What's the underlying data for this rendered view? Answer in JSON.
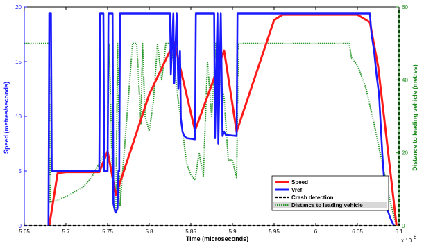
{
  "chart_data": {
    "type": "line",
    "xlabel": "Time (microseconds)",
    "ylabel_left": "Speed (metres/seconds)",
    "ylabel_right": "Distance to leading vehicle (metres)",
    "x_exponent_label": "x 10",
    "x_exponent_power": "8",
    "xlim": [
      5.65,
      6.1
    ],
    "ylim_left": [
      0,
      20
    ],
    "ylim_right": [
      0,
      60
    ],
    "x_ticks": [
      5.65,
      5.7,
      5.75,
      5.8,
      5.85,
      5.9,
      5.95,
      6.0,
      6.05,
      6.1
    ],
    "x_tick_labels": [
      "5.65",
      "5.7",
      "5.75",
      "5.8",
      "5.85",
      "5.9",
      "5.95",
      "6",
      "6.05",
      "6.1"
    ],
    "y_left_ticks": [
      0,
      5,
      10,
      15,
      20
    ],
    "y_left_tick_labels": [
      "0",
      "5",
      "10",
      "15",
      "20"
    ],
    "y_right_ticks": [
      0,
      20,
      40,
      60
    ],
    "y_right_tick_labels": [
      "0",
      "20",
      "40",
      "60"
    ],
    "left_axis_color": "#1a1aff",
    "right_axis_color": "#1a8a1a",
    "legend_placement": "bottom-right",
    "grid": false,
    "series": [
      {
        "name": "Speed",
        "axis": "left",
        "color": "#ff1a1a",
        "style": "solid",
        "x": [
          5.68,
          5.69,
          5.7,
          5.71,
          5.72,
          5.73,
          5.74,
          5.75,
          5.76,
          5.8,
          5.83,
          5.855,
          5.89,
          5.905,
          5.95,
          5.96,
          6.0,
          6.05,
          6.065,
          6.075,
          6.085,
          6.097
        ],
        "y": [
          0,
          4.8,
          4.9,
          4.9,
          4.9,
          4.9,
          4.9,
          6.8,
          2.8,
          12.0,
          16.8,
          8.7,
          16.0,
          8.6,
          18.8,
          19.3,
          19.3,
          19.3,
          18.6,
          14.5,
          8.0,
          0
        ]
      },
      {
        "name": "Vref",
        "axis": "left",
        "color": "#1a1aff",
        "style": "solid",
        "x": [
          5.679,
          5.68,
          5.681,
          5.682,
          5.683,
          5.684,
          5.74,
          5.741,
          5.745,
          5.746,
          5.75,
          5.751,
          5.752,
          5.756,
          5.757,
          5.759,
          5.76,
          5.762,
          5.763,
          5.764,
          5.765,
          5.766,
          5.767,
          5.825,
          5.826,
          5.829,
          5.83,
          5.833,
          5.835,
          5.837,
          5.838,
          5.84,
          5.842,
          5.845,
          5.855,
          5.856,
          5.878,
          5.879,
          5.882,
          5.883,
          5.886,
          5.888,
          5.89,
          5.892,
          5.905,
          5.906,
          6.065,
          6.067,
          6.07,
          6.073,
          6.076,
          6.08,
          6.083,
          6.086,
          6.09,
          6.094
        ],
        "y": [
          0,
          19.4,
          19.4,
          19.4,
          5.0,
          5.0,
          5.0,
          19.4,
          19.4,
          5.0,
          5.0,
          19.4,
          19.4,
          19.4,
          2.0,
          1.3,
          1.2,
          1.6,
          5.0,
          5.0,
          19.4,
          19.4,
          19.4,
          19.4,
          13.8,
          19.4,
          13.0,
          19.4,
          12.5,
          16.0,
          9.8,
          8.6,
          8.2,
          8.0,
          7.9,
          19.4,
          19.4,
          8.0,
          19.4,
          7.5,
          19.4,
          8.2,
          8.6,
          8.3,
          8.2,
          19.4,
          19.4,
          17.5,
          16.0,
          13.8,
          12.0,
          6.5,
          3.2,
          1.5,
          0.6,
          0
        ]
      },
      {
        "name": "Crash detection",
        "axis": "left",
        "color": "#000000",
        "style": "dashed",
        "x": [
          5.65,
          6.1,
          6.1
        ],
        "y": [
          0,
          0,
          19.8
        ]
      },
      {
        "name": "Distance to leading vehicle",
        "axis": "right",
        "color": "#2f9a2f",
        "style": "dotted",
        "x": [
          5.65,
          5.68,
          5.681,
          5.69,
          5.7,
          5.72,
          5.73,
          5.74,
          5.745,
          5.75,
          5.752,
          5.755,
          5.757,
          5.76,
          5.762,
          5.765,
          5.78,
          5.785,
          5.79,
          5.792,
          5.795,
          5.8,
          5.805,
          5.81,
          5.815,
          5.82,
          5.825,
          5.83,
          5.835,
          5.84,
          5.845,
          5.85,
          5.855,
          5.86,
          5.865,
          5.87,
          5.875,
          5.88,
          5.885,
          5.89,
          5.895,
          5.9,
          5.905,
          5.907,
          6.04,
          6.043,
          6.05,
          6.06,
          6.07,
          6.08,
          6.09,
          6.097
        ],
        "y": [
          50,
          50,
          6.5,
          7.0,
          8.0,
          10.5,
          13.0,
          17.0,
          19.0,
          20.0,
          50.0,
          20.0,
          7.0,
          3.5,
          50.0,
          5.5,
          50.0,
          50.0,
          28.0,
          50.0,
          30.0,
          26.0,
          34.0,
          50.0,
          40.0,
          50.0,
          50.0,
          44.0,
          34.0,
          26.0,
          17.0,
          14.0,
          12.5,
          20.0,
          13.5,
          45.0,
          30.0,
          50.0,
          40.0,
          35.0,
          18.0,
          18.0,
          13.0,
          50.0,
          50.0,
          46.0,
          44.0,
          38.0,
          28.0,
          17.0,
          6.0,
          0
        ]
      }
    ],
    "legend": [
      {
        "label": "Speed",
        "color": "#ff1a1a",
        "style": "solid"
      },
      {
        "label": "Vref",
        "color": "#1a1aff",
        "style": "solid"
      },
      {
        "label": "Crash detection",
        "color": "#000000",
        "style": "dashed"
      },
      {
        "label": "Distance to leading vehicle",
        "color": "#2f9a2f",
        "style": "dotted"
      }
    ]
  }
}
